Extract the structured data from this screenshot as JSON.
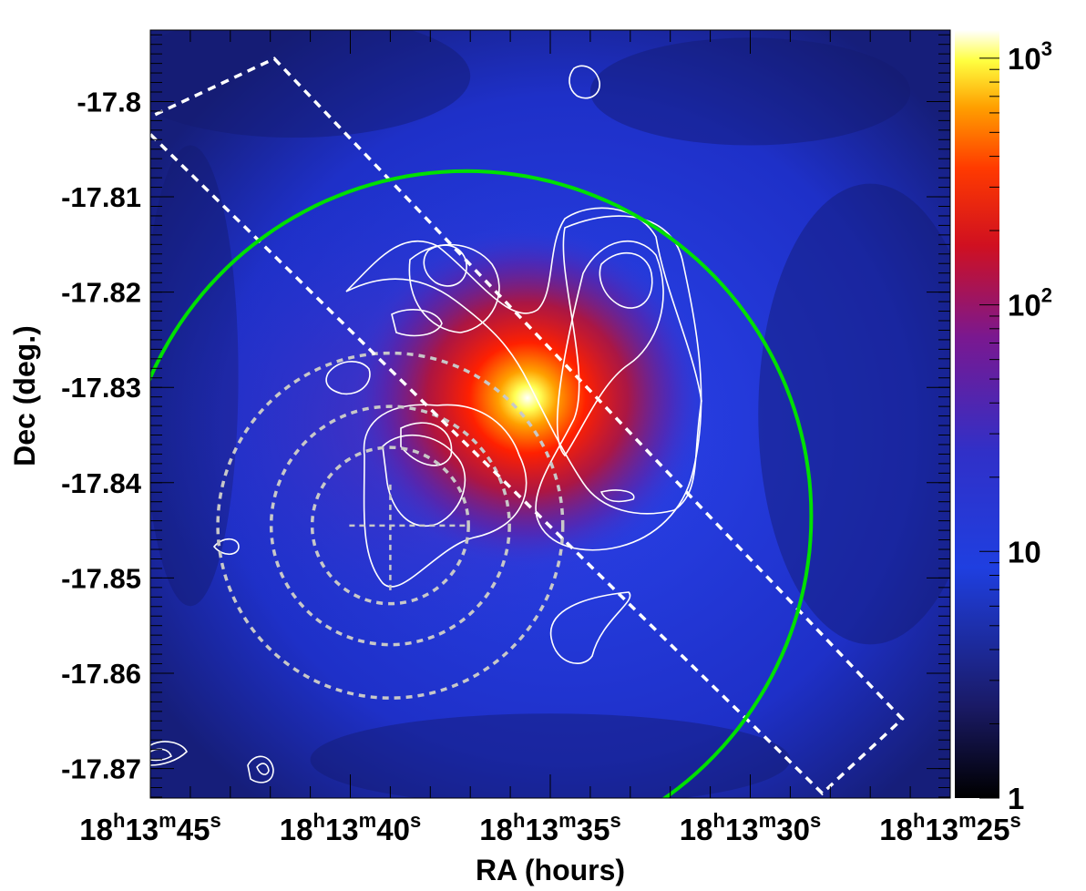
{
  "chart_data": {
    "type": "heatmap",
    "title": "",
    "xlabel": "RA (hours)",
    "ylabel": "Dec (deg.)",
    "x_axis": {
      "reversed": true,
      "ticks": [
        {
          "seconds": 45,
          "h": "18",
          "m": "13",
          "s": "45"
        },
        {
          "seconds": 40,
          "h": "18",
          "m": "13",
          "s": "40"
        },
        {
          "seconds": 35,
          "h": "18",
          "m": "13",
          "s": "35"
        },
        {
          "seconds": 30,
          "h": "18",
          "m": "13",
          "s": "30"
        },
        {
          "seconds": 25,
          "h": "18",
          "m": "13",
          "s": "25"
        }
      ],
      "h_unit": "h",
      "m_unit": "m",
      "s_unit": "s",
      "range_seconds": [
        45.0,
        25.0
      ]
    },
    "y_axis": {
      "ticks": [
        {
          "value": -17.8,
          "label": "-17.8"
        },
        {
          "value": -17.81,
          "label": "-17.81"
        },
        {
          "value": -17.82,
          "label": "-17.82"
        },
        {
          "value": -17.83,
          "label": "-17.83"
        },
        {
          "value": -17.84,
          "label": "-17.84"
        },
        {
          "value": -17.85,
          "label": "-17.85"
        },
        {
          "value": -17.86,
          "label": "-17.86"
        },
        {
          "value": -17.87,
          "label": "-17.87"
        }
      ],
      "range": [
        -17.8731,
        -17.7925
      ]
    },
    "colorbar": {
      "scale": "log",
      "range": [
        1,
        1300
      ],
      "ticks": [
        {
          "value": 1,
          "base": "1",
          "exp": ""
        },
        {
          "value": 10,
          "base": "10",
          "exp": ""
        },
        {
          "value": 100,
          "base": "10",
          "exp": "2"
        },
        {
          "value": 1000,
          "base": "10",
          "exp": "3"
        }
      ],
      "palette": [
        "#000000",
        "#1e1e78",
        "#1f3fe0",
        "#5a20a0",
        "#c0102a",
        "#ff2a00",
        "#ffb000",
        "#ffff40",
        "#ffffff"
      ]
    },
    "intensity_peak": {
      "ra_s": 35.0,
      "dec": -17.8335,
      "value": 1300
    },
    "background_level": 12,
    "green_arc": {
      "center_ra_s": 37.1,
      "center_dec": -17.8435,
      "radius_deg": 0.0362,
      "color": "#00e000"
    },
    "dashed_circles": {
      "center_ra_s": 39.0,
      "center_dec": -17.8445,
      "radii_deg": [
        0.0082,
        0.0125,
        0.0181
      ],
      "color": "#c8c8c8"
    },
    "cross_marker": {
      "ra_s": 39.0,
      "dec": -17.8445
    },
    "dashed_box": {
      "color": "#ffffff",
      "corners": [
        {
          "ra_s": 41.9,
          "dec": -17.7955
        },
        {
          "ra_s": 26.2,
          "dec": -17.8648
        },
        {
          "ra_s": 28.2,
          "dec": -17.8726
        },
        {
          "ra_s": 45.3,
          "dec": -17.8022
        }
      ]
    },
    "contours": {
      "color": "#ffffff"
    }
  }
}
